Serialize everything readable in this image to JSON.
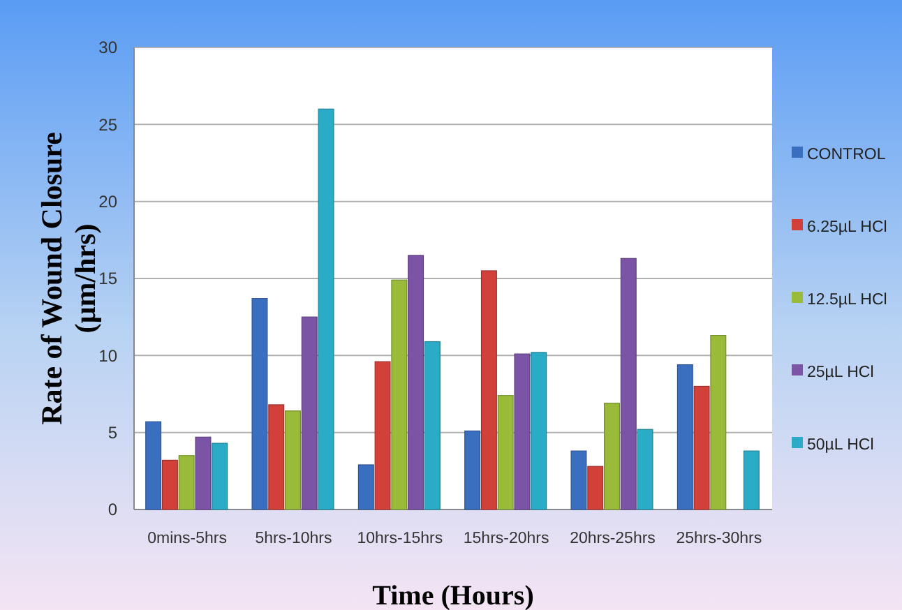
{
  "chart_data": {
    "type": "bar",
    "xlabel": "Time (Hours)",
    "ylabel": "Rate of Wound Closure (µm/hrs)",
    "categories": [
      "0mins-5hrs",
      "5hrs-10hrs",
      "10hrs-15hrs",
      "15hrs-20hrs",
      "20hrs-25hrs",
      "25hrs-30hrs"
    ],
    "series": [
      {
        "name": "CONTROL",
        "color": "#3a6fc0",
        "values": [
          5.7,
          13.7,
          2.9,
          5.1,
          3.8,
          9.4
        ]
      },
      {
        "name": "6.25µL HCl",
        "color": "#d2403a",
        "values": [
          3.2,
          6.8,
          9.6,
          15.5,
          2.8,
          8.0
        ]
      },
      {
        "name": "12.5µL HCl",
        "color": "#9abb3a",
        "values": [
          3.5,
          6.4,
          14.9,
          7.4,
          6.9,
          11.3
        ]
      },
      {
        "name": "25µL HCl",
        "color": "#7c54a6",
        "values": [
          4.7,
          12.5,
          16.5,
          10.1,
          16.3,
          null
        ]
      },
      {
        "name": "50µL HCl",
        "color": "#2aacc6",
        "values": [
          4.3,
          26,
          10.9,
          10.2,
          5.2,
          3.8
        ]
      }
    ],
    "ylim": [
      0,
      30
    ],
    "yticks": [
      0,
      5,
      10,
      15,
      20,
      25,
      30
    ],
    "grid": "y",
    "legend": "right"
  }
}
